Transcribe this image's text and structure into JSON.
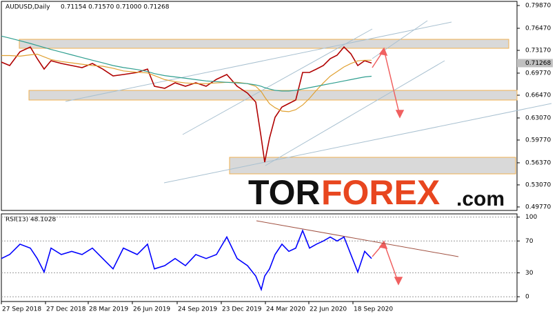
{
  "chart_data": [
    {
      "type": "line",
      "title": "AUDUSD,Daily",
      "subtitle": "0.71154 0.71570 0.71000 0.71268",
      "last_price": 0.71268,
      "watermark": [
        "TOR",
        "FOREX",
        ".com"
      ],
      "x": [
        0,
        12,
        27,
        42,
        52,
        62,
        72,
        87,
        102,
        117,
        132,
        147,
        162,
        177,
        197,
        212,
        222,
        237,
        252,
        267,
        282,
        297,
        312,
        327,
        342,
        357,
        369,
        377,
        382,
        389,
        397,
        407,
        417,
        427,
        437,
        447,
        457,
        467,
        477,
        487,
        497,
        507,
        517,
        527,
        537
      ],
      "series": [
        {
          "color": "#b00000",
          "values": [
            0.7142,
            0.709,
            0.7296,
            0.7368,
            0.7193,
            0.7038,
            0.7162,
            0.7121,
            0.709,
            0.7059,
            0.7121,
            0.7038,
            0.6935,
            0.6956,
            0.6987,
            0.7038,
            0.6781,
            0.675,
            0.6832,
            0.6781,
            0.6832,
            0.6781,
            0.6884,
            0.6956,
            0.6781,
            0.6678,
            0.6544,
            0.6008,
            0.5647,
            0.6008,
            0.6317,
            0.6471,
            0.6523,
            0.6575,
            0.6987,
            0.6987,
            0.7038,
            0.709,
            0.7193,
            0.7245,
            0.7368,
            0.7265,
            0.709,
            0.7162,
            0.7127
          ]
        },
        {
          "color": "#e0a030",
          "values": [
            0.724,
            0.724,
            0.723,
            0.725,
            0.726,
            0.722,
            0.718,
            0.715,
            0.713,
            0.711,
            0.709,
            0.708,
            0.705,
            0.701,
            0.699,
            0.698,
            0.694,
            0.688,
            0.685,
            0.683,
            0.682,
            0.682,
            0.683,
            0.684,
            0.684,
            0.682,
            0.678,
            0.67,
            0.662,
            0.652,
            0.646,
            0.641,
            0.64,
            0.643,
            0.65,
            0.66,
            0.672,
            0.683,
            0.693,
            0.7,
            0.707,
            0.712,
            0.716,
            0.717,
            0.717
          ]
        },
        {
          "color": "#2e9e8f",
          "values": [
            0.753,
            0.75,
            0.746,
            0.742,
            0.739,
            0.736,
            0.733,
            0.729,
            0.725,
            0.721,
            0.717,
            0.713,
            0.709,
            0.706,
            0.703,
            0.7,
            0.697,
            0.694,
            0.692,
            0.69,
            0.688,
            0.686,
            0.685,
            0.684,
            0.683,
            0.682,
            0.68,
            0.678,
            0.676,
            0.674,
            0.672,
            0.671,
            0.671,
            0.672,
            0.674,
            0.676,
            0.678,
            0.68,
            0.682,
            0.684,
            0.686,
            0.688,
            0.69,
            0.692,
            0.693
          ]
        }
      ],
      "xlim": [
        0,
        748
      ],
      "xticks": [
        {
          "value": 0,
          "label": "27 Sep 2018"
        },
        {
          "value": 64,
          "label": "27 Dec 2018"
        },
        {
          "value": 126,
          "label": "28 Mar 2019"
        },
        {
          "value": 190,
          "label": "26 Jun 2019"
        },
        {
          "value": 255,
          "label": "24 Sep 2019"
        },
        {
          "value": 319,
          "label": "23 Dec 2019"
        },
        {
          "value": 383,
          "label": "24 Mar 2020"
        },
        {
          "value": 446,
          "label": "22 Jun 2020"
        },
        {
          "value": 510,
          "label": "18 Sep 2020"
        }
      ],
      "ylim": [
        0.4925,
        0.8049
      ],
      "yticks": [
        {
          "value": 0.7987,
          "label": "0.79870"
        },
        {
          "value": 0.7647,
          "label": "0.76470"
        },
        {
          "value": 0.7317,
          "label": "0.73170"
        },
        {
          "value": 0.6977,
          "label": "0.69770"
        },
        {
          "value": 0.6647,
          "label": "0.66470"
        },
        {
          "value": 0.6307,
          "label": "0.63070"
        },
        {
          "value": 0.5977,
          "label": "0.59770"
        },
        {
          "value": 0.5637,
          "label": "0.56370"
        },
        {
          "value": 0.5307,
          "label": "0.53070"
        },
        {
          "value": 0.4977,
          "label": "0.49770"
        }
      ]
    },
    {
      "type": "line",
      "title": "RSI(13) 48.1028",
      "x": [
        0,
        12,
        27,
        42,
        52,
        62,
        72,
        87,
        102,
        117,
        132,
        147,
        162,
        177,
        197,
        212,
        222,
        237,
        252,
        267,
        282,
        297,
        312,
        327,
        342,
        357,
        369,
        377,
        382,
        389,
        397,
        407,
        417,
        427,
        437,
        447,
        457,
        467,
        477,
        487,
        497,
        507,
        517,
        527,
        537
      ],
      "series": [
        {
          "color": "#0000ff",
          "values": [
            48,
            53,
            66,
            61,
            48,
            31,
            61,
            53,
            57,
            53,
            61,
            48,
            35,
            61,
            53,
            66,
            35,
            39,
            48,
            39,
            53,
            48,
            53,
            75,
            48,
            39,
            26,
            9,
            26,
            35,
            53,
            66,
            57,
            61,
            83,
            61,
            66,
            70,
            75,
            70,
            75,
            53,
            31,
            57,
            48
          ]
        }
      ],
      "xlim": [
        0,
        748
      ],
      "ylim": [
        -6,
        104
      ],
      "yticks": [
        100,
        70,
        30,
        0
      ],
      "grid": true
    }
  ]
}
